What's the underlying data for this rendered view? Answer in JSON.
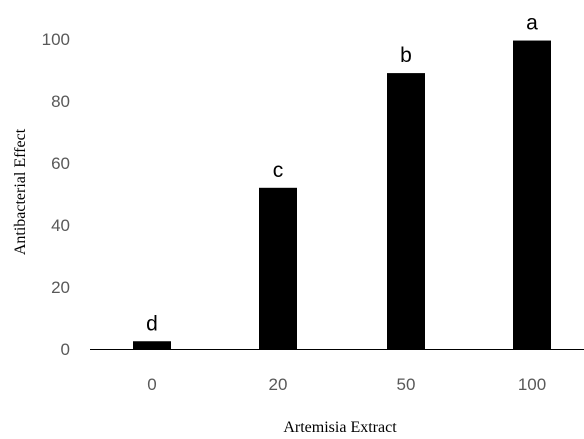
{
  "chart_data": {
    "type": "bar",
    "categories": [
      "0",
      "20",
      "50",
      "100"
    ],
    "values": [
      2.5,
      52,
      89,
      99.5
    ],
    "data_labels": [
      "d",
      "c",
      "b",
      "a"
    ],
    "xlabel": "Artemisia Extract",
    "ylabel": "Antibacterial Effect",
    "ylim": [
      0,
      100
    ],
    "yticks": [
      0,
      20,
      40,
      60,
      80,
      100
    ],
    "grid": false,
    "legend": "none",
    "bar_color": "#000000",
    "tick_color": "#595959"
  }
}
